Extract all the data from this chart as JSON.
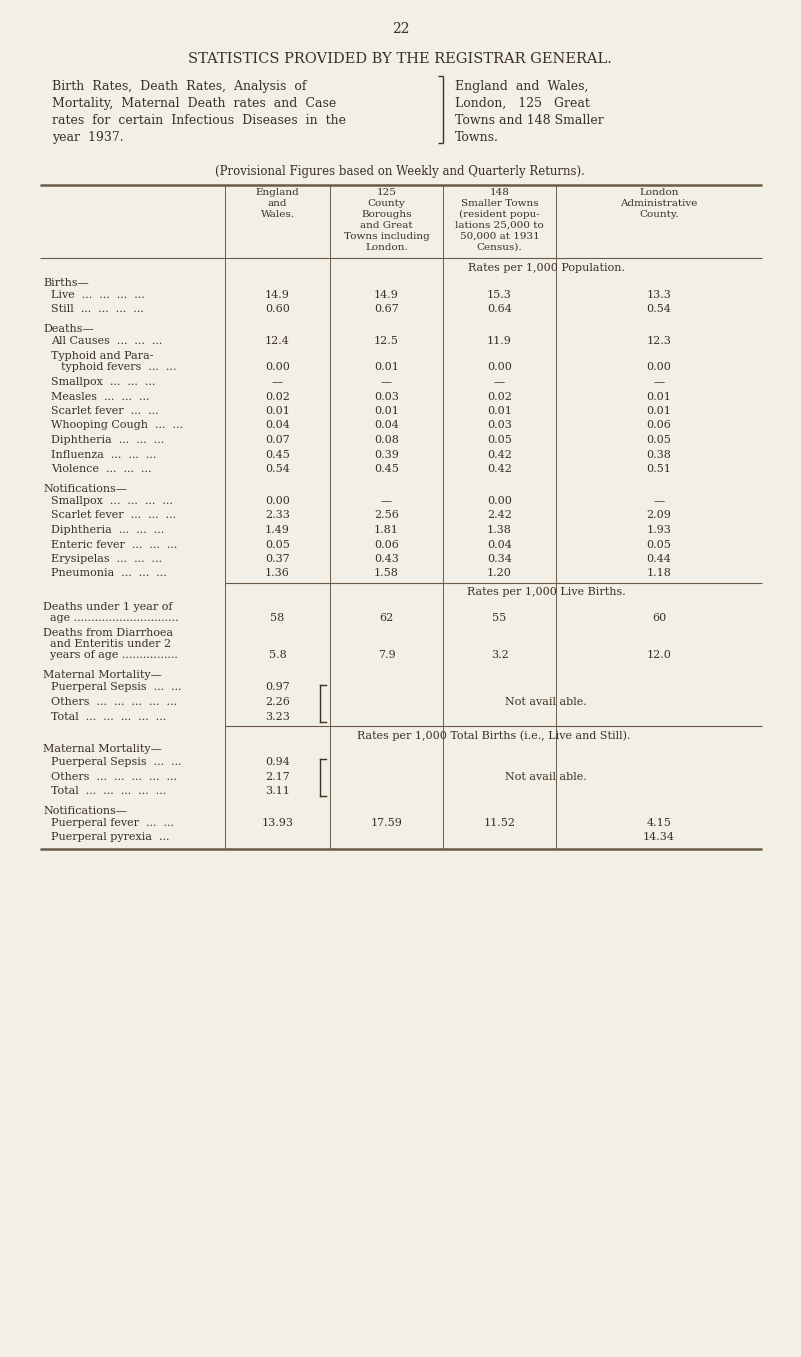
{
  "page_number": "22",
  "title": "STATISTICS PROVIDED BY THE REGISTRAR GENERAL.",
  "subtitle_left_lines": [
    "Birth  Rates,  Death  Rates,  Analysis  of",
    "Mortality,  Maternal  Death  rates  and  Case",
    "rates  for  certain  Infectious  Diseases  in  the",
    "year  1937."
  ],
  "subtitle_right_lines": [
    "England  and  Wales,",
    "London,   125   Great",
    "Towns and 148 Smaller",
    "Towns."
  ],
  "provisional": "(Provisional Figures based on Weekly and Quarterly Returns).",
  "col_h1": [
    "England",
    "and",
    "Wales."
  ],
  "col_h2": [
    "125",
    "County",
    "Boroughs",
    "and Great",
    "Towns including",
    "London."
  ],
  "col_h3": [
    "148",
    "Smaller Towns",
    "(resident popu-",
    "lations 25,000 to",
    "50,000 at 1931",
    "Census)."
  ],
  "col_h4": [
    "London",
    "Administrative",
    "County."
  ],
  "bg_color": "#f2efe6",
  "text_color": "#3d2f22",
  "line_color": "#6b5a45"
}
